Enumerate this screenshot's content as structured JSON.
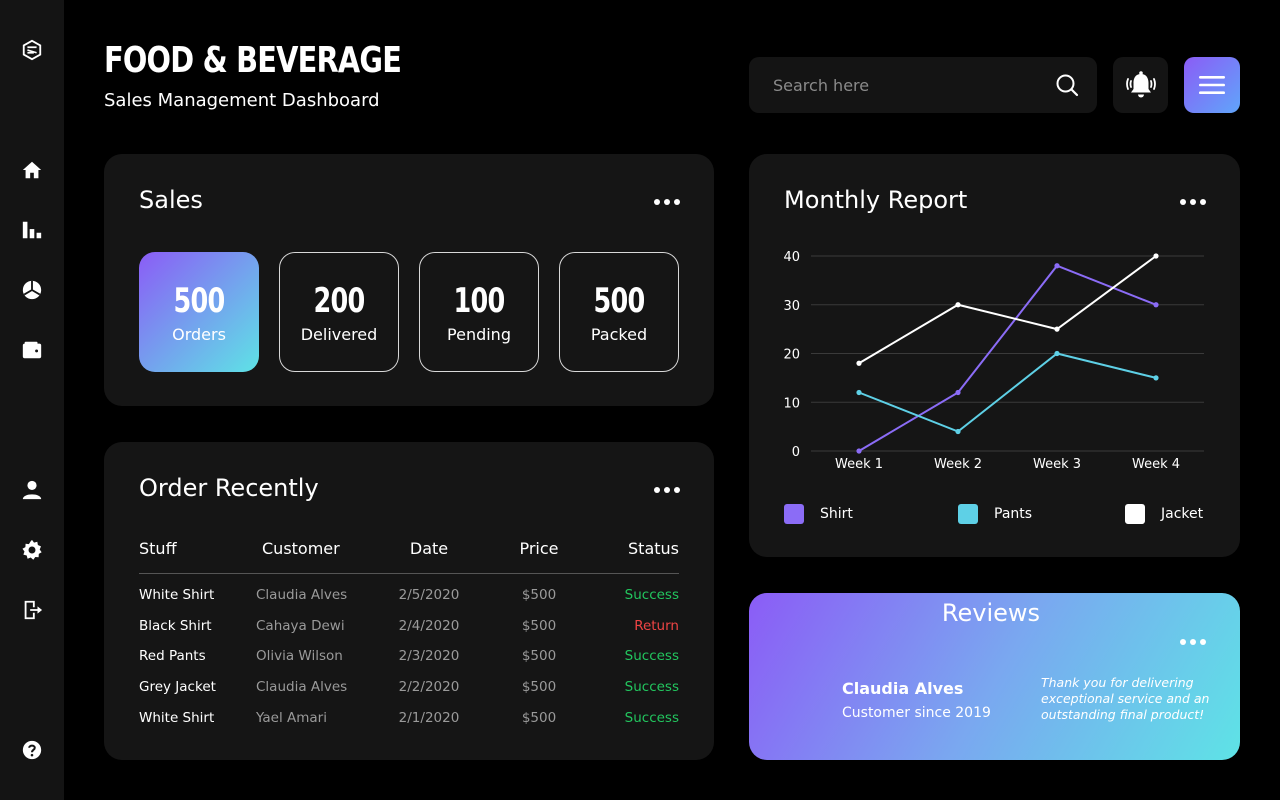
{
  "header": {
    "title": "FOOD & BEVERAGE",
    "subtitle": "Sales Management Dashboard",
    "search_placeholder": "Search here"
  },
  "sidebar": {
    "items": [
      {
        "icon": "home-icon"
      },
      {
        "icon": "bar-chart-icon"
      },
      {
        "icon": "pie-chart-icon"
      },
      {
        "icon": "wallet-icon"
      },
      {
        "icon": "user-icon"
      },
      {
        "icon": "settings-icon"
      },
      {
        "icon": "logout-icon"
      },
      {
        "icon": "help-icon"
      }
    ]
  },
  "sales": {
    "title": "Sales",
    "stats": [
      {
        "value": "500",
        "label": "Orders"
      },
      {
        "value": "200",
        "label": "Delivered"
      },
      {
        "value": "100",
        "label": "Pending"
      },
      {
        "value": "500",
        "label": "Packed"
      }
    ]
  },
  "orders": {
    "title": "Order Recently",
    "columns": [
      "Stuff",
      "Customer",
      "Date",
      "Price",
      "Status"
    ],
    "rows": [
      {
        "stuff": "White Shirt",
        "customer": "Claudia Alves",
        "date": "2/5/2020",
        "price": "$500",
        "status": "Success"
      },
      {
        "stuff": "Black Shirt",
        "customer": "Cahaya Dewi",
        "date": "2/4/2020",
        "price": "$500",
        "status": "Return"
      },
      {
        "stuff": "Red Pants",
        "customer": "Olivia Wilson",
        "date": "2/3/2020",
        "price": "$500",
        "status": "Success"
      },
      {
        "stuff": "Grey Jacket",
        "customer": "Claudia Alves",
        "date": "2/2/2020",
        "price": "$500",
        "status": "Success"
      },
      {
        "stuff": "White Shirt",
        "customer": "Yael Amari",
        "date": "2/1/2020",
        "price": "$500",
        "status": "Success"
      }
    ]
  },
  "colors": {
    "success": "#22c55e",
    "return": "#ef4444",
    "shirt": "#8b6cf6",
    "pants": "#5ed0e6",
    "jacket": "#ffffff"
  },
  "report": {
    "title": "Monthly Report"
  },
  "chart_data": {
    "type": "line",
    "title": "Monthly Report",
    "categories": [
      "Week 1",
      "Week 2",
      "Week 3",
      "Week 4"
    ],
    "ylim": [
      0,
      40
    ],
    "yticks": [
      0,
      10,
      20,
      30,
      40
    ],
    "grid": true,
    "legend": "bottom",
    "series": [
      {
        "name": "Shirt",
        "color": "#8b6cf6",
        "values": [
          0,
          12,
          38,
          30
        ]
      },
      {
        "name": "Pants",
        "color": "#5ed0e6",
        "values": [
          12,
          4,
          20,
          15
        ]
      },
      {
        "name": "Jacket",
        "color": "#ffffff",
        "values": [
          18,
          30,
          25,
          40
        ]
      }
    ]
  },
  "reviews": {
    "title": "Reviews",
    "name": "Claudia Alves",
    "since": "Customer since 2019",
    "quote": "Thank you for delivering exceptional service and an outstanding final product!"
  }
}
